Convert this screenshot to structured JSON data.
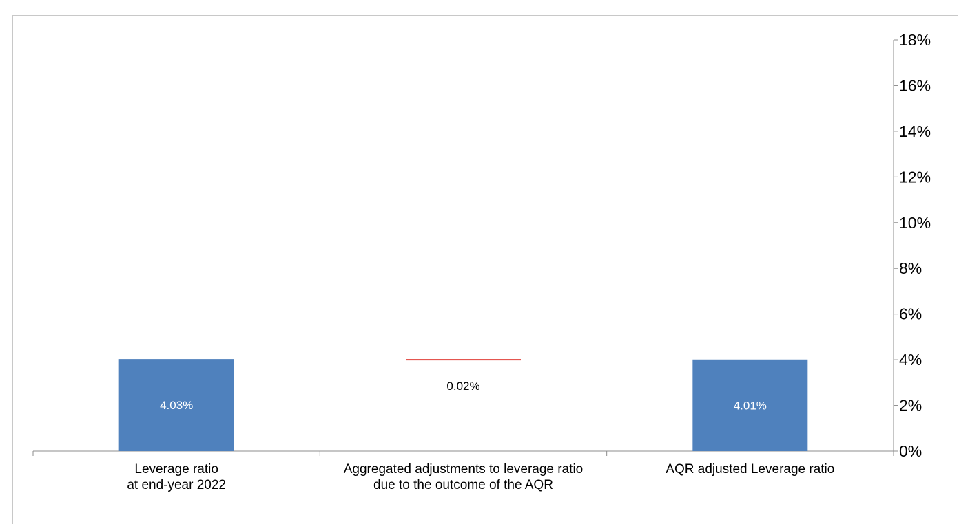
{
  "chart_data": {
    "type": "bar",
    "subtype": "waterfall",
    "categories": [
      [
        "Leverage ratio",
        "at end-year 2022"
      ],
      [
        "Aggregated adjustments to leverage ratio",
        "due to the outcome of the AQR"
      ],
      [
        "AQR adjusted Leverage ratio"
      ]
    ],
    "values": [
      4.03,
      -0.02,
      4.01
    ],
    "data_labels": [
      "4.03%",
      "0.02%",
      "4.01%"
    ],
    "y_axis": {
      "position": "right",
      "min": 0,
      "max": 18,
      "step": 2,
      "tick_labels": [
        "0%",
        "2%",
        "4%",
        "6%",
        "8%",
        "10%",
        "12%",
        "14%",
        "16%",
        "18%"
      ]
    },
    "colors": {
      "bar": "#4F81BD",
      "adjustment": "#E0413A",
      "axis": "#8C8C8C",
      "bar_label": "#ffffff",
      "adjustment_label": "#000000"
    },
    "grid": false,
    "legend": "none"
  }
}
